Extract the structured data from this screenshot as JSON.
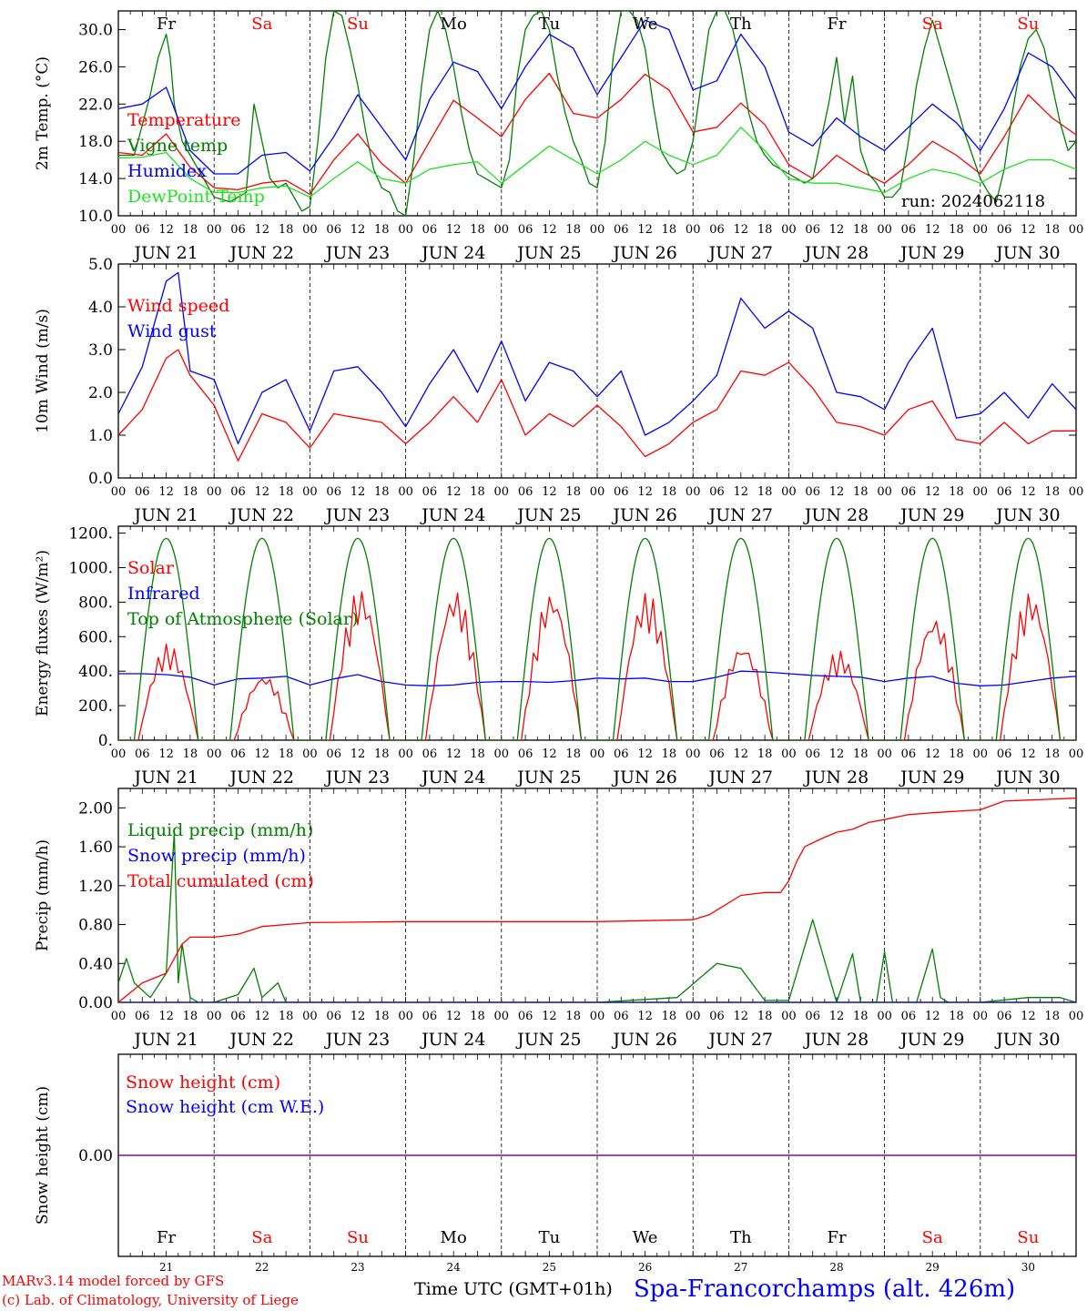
{
  "colors": {
    "red": "#ff0000",
    "green": "#008000",
    "blue": "#0000ff",
    "light_green": "#22e022",
    "purple": "#800080",
    "black": "#000000"
  },
  "days": [
    "Fr",
    "Sa",
    "Su",
    "Mo",
    "Tu",
    "We",
    "Th",
    "Fr",
    "Sa",
    "Su"
  ],
  "weekend_days": [
    "Sa",
    "Su"
  ],
  "date_labels": [
    "JUN 21",
    "JUN 22",
    "JUN 23",
    "JUN 24",
    "JUN 25",
    "JUN 26",
    "JUN 27",
    "JUN 28",
    "JUN 29",
    "JUN 30"
  ],
  "day_numbers": [
    "21",
    "22",
    "23",
    "24",
    "25",
    "26",
    "27",
    "28",
    "29",
    "30"
  ],
  "hour_labels": [
    "00",
    "06",
    "12",
    "18"
  ],
  "run_label": "run: 2024062118",
  "footer": {
    "model": "MARv3.14 model forced by GFS",
    "lab": "(c) Lab. of Climatology, University of Liege",
    "xlabel": "Time UTC (GMT+01h)",
    "location": "Spa-Francorchamps (alt. 426m)"
  },
  "chart_data": [
    {
      "type": "line",
      "ylabel": "2m Temp. (°C)",
      "ylim": [
        10,
        32
      ],
      "yticks": [
        "10.0",
        "14.0",
        "18.0",
        "22.0",
        "26.0",
        "30.0"
      ],
      "xlabel": "",
      "x_unit": "hours since 2024-06-21 00 UTC",
      "series": [
        {
          "name": "Temperature",
          "color": "#ff0000",
          "x": [
            0,
            6,
            12,
            18,
            24,
            30,
            36,
            42,
            48,
            54,
            60,
            66,
            72,
            78,
            84,
            90,
            96,
            102,
            108,
            114,
            120,
            126,
            132,
            138,
            144,
            150,
            156,
            162,
            168,
            174,
            180,
            186,
            192,
            198,
            204,
            210,
            216,
            222,
            228,
            234,
            240
          ],
          "y": [
            16.8,
            16.5,
            18.8,
            15.2,
            13.0,
            12.8,
            13.5,
            13.8,
            12.3,
            16.0,
            18.8,
            15.6,
            13.5,
            18.0,
            22.4,
            20.5,
            18.5,
            22.5,
            25.3,
            21.0,
            20.5,
            22.5,
            25.2,
            23.5,
            19.0,
            19.5,
            22.1,
            19.8,
            15.5,
            14.0,
            16.5,
            14.8,
            13.5,
            15.5,
            18.0,
            16.5,
            14.5,
            18.5,
            23.0,
            20.5,
            18.7
          ]
        },
        {
          "name": "Vigne temp",
          "color": "#008000",
          "x": [
            0,
            4,
            8,
            10,
            12,
            13,
            14,
            16,
            18,
            20,
            24,
            28,
            32,
            34,
            36,
            38,
            40,
            42,
            44,
            46,
            48,
            50,
            52,
            54,
            56,
            58,
            60,
            62,
            64,
            66,
            68,
            70,
            72,
            74,
            76,
            78,
            80,
            82,
            84,
            86,
            88,
            90,
            92,
            94,
            96,
            98,
            100,
            102,
            104,
            106,
            108,
            110,
            112,
            114,
            116,
            118,
            120,
            122,
            124,
            126,
            128,
            130,
            132,
            134,
            136,
            138,
            140,
            142,
            144,
            146,
            148,
            150,
            152,
            154,
            156,
            158,
            160,
            162,
            164,
            166,
            168,
            170,
            172,
            174,
            176,
            178,
            180,
            182,
            184,
            186,
            188,
            190,
            192,
            194,
            196,
            198,
            200,
            202,
            204,
            206,
            208,
            210,
            212,
            214,
            216,
            218,
            220,
            222,
            224,
            226,
            228,
            230,
            232,
            234,
            236,
            238,
            240
          ],
          "y": [
            16.5,
            16.5,
            23.0,
            27.0,
            29.5,
            27.0,
            22.0,
            18.0,
            16.5,
            15.0,
            12.0,
            11.5,
            12.5,
            22.0,
            18.0,
            14.0,
            13.0,
            13.5,
            12.0,
            10.5,
            11.0,
            18.0,
            27.0,
            32.0,
            31.5,
            28.0,
            24.0,
            19.0,
            15.0,
            13.0,
            12.5,
            10.5,
            10.0,
            16.0,
            24.0,
            30.0,
            33.0,
            30.0,
            26.0,
            21.0,
            17.0,
            14.5,
            14.0,
            13.5,
            13.0,
            16.0,
            25.0,
            30.0,
            31.5,
            32.0,
            30.0,
            25.0,
            21.0,
            18.0,
            16.0,
            13.5,
            13.0,
            18.0,
            27.0,
            32.0,
            33.0,
            31.0,
            28.0,
            22.0,
            17.0,
            15.5,
            14.5,
            15.0,
            18.0,
            24.0,
            30.0,
            33.0,
            32.0,
            30.0,
            26.0,
            21.0,
            18.0,
            16.5,
            15.5,
            15.0,
            14.5,
            14.0,
            13.5,
            14.0,
            18.0,
            22.0,
            27.0,
            20.0,
            25.0,
            17.0,
            14.5,
            13.5,
            12.0,
            12.0,
            13.0,
            18.0,
            24.0,
            28.0,
            31.0,
            28.0,
            25.0,
            22.0,
            19.0,
            16.5,
            14.0,
            12.5,
            11.5,
            15.0,
            21.0,
            26.0,
            29.0,
            30.0,
            28.0,
            24.0,
            20.0,
            17.0,
            18.0
          ]
        },
        {
          "name": "Humidex",
          "color": "#0000ff",
          "x": [
            0,
            6,
            12,
            18,
            24,
            30,
            36,
            42,
            48,
            54,
            60,
            66,
            72,
            78,
            84,
            90,
            96,
            102,
            108,
            114,
            120,
            126,
            132,
            138,
            144,
            150,
            156,
            162,
            168,
            174,
            180,
            186,
            192,
            198,
            204,
            210,
            216,
            222,
            228,
            234,
            240
          ],
          "y": [
            21.5,
            22.0,
            23.8,
            17.0,
            14.5,
            14.5,
            16.5,
            16.8,
            14.8,
            18.5,
            23.0,
            19.5,
            16.0,
            22.5,
            26.5,
            25.5,
            21.5,
            26.0,
            29.5,
            28.0,
            23.0,
            27.0,
            31.0,
            30.0,
            23.5,
            24.5,
            29.5,
            26.0,
            19.0,
            17.5,
            20.5,
            18.5,
            17.0,
            19.5,
            22.0,
            20.0,
            17.0,
            21.5,
            27.5,
            26.0,
            22.5
          ]
        },
        {
          "name": "DewPoint Temp",
          "color": "#22e022",
          "x": [
            0,
            6,
            12,
            18,
            24,
            30,
            36,
            42,
            48,
            54,
            60,
            66,
            72,
            78,
            84,
            90,
            96,
            102,
            108,
            114,
            120,
            126,
            132,
            138,
            144,
            150,
            156,
            162,
            168,
            174,
            180,
            186,
            192,
            198,
            204,
            210,
            216,
            222,
            228,
            234,
            240
          ],
          "y": [
            16.2,
            16.3,
            16.8,
            14.0,
            12.5,
            12.5,
            13.0,
            13.2,
            12.0,
            14.0,
            15.8,
            14.0,
            13.5,
            15.0,
            15.5,
            15.8,
            13.5,
            15.5,
            17.5,
            16.0,
            14.5,
            16.0,
            18.0,
            16.5,
            15.5,
            16.5,
            19.5,
            17.0,
            14.0,
            13.5,
            13.5,
            13.0,
            12.5,
            14.0,
            15.0,
            14.5,
            13.5,
            15.0,
            16.0,
            16.0,
            15.0
          ]
        }
      ]
    },
    {
      "type": "line",
      "ylabel": "10m Wind (m/s)",
      "ylim": [
        0,
        5
      ],
      "yticks": [
        "0.0",
        "1.0",
        "2.0",
        "3.0",
        "4.0",
        "5.0"
      ],
      "x_unit": "hours since 2024-06-21 00 UTC",
      "series": [
        {
          "name": "Wind speed",
          "color": "#ff0000",
          "x": [
            0,
            6,
            12,
            15,
            18,
            24,
            30,
            36,
            42,
            48,
            54,
            60,
            66,
            72,
            78,
            84,
            90,
            96,
            102,
            108,
            114,
            120,
            126,
            132,
            138,
            144,
            150,
            156,
            162,
            168,
            174,
            180,
            186,
            192,
            198,
            204,
            210,
            216,
            222,
            228,
            234,
            240
          ],
          "y": [
            1.0,
            1.6,
            2.8,
            3.0,
            2.4,
            1.7,
            0.4,
            1.5,
            1.3,
            0.7,
            1.5,
            1.4,
            1.3,
            0.8,
            1.3,
            1.9,
            1.3,
            2.3,
            1.0,
            1.5,
            1.2,
            1.7,
            1.2,
            0.5,
            0.8,
            1.3,
            1.6,
            2.5,
            2.4,
            2.7,
            2.1,
            1.3,
            1.2,
            1.0,
            1.6,
            1.8,
            0.9,
            0.8,
            1.3,
            0.8,
            1.1,
            1.1
          ]
        },
        {
          "name": "Wind gust",
          "color": "#0000ff",
          "x": [
            0,
            6,
            12,
            15,
            18,
            24,
            30,
            36,
            42,
            48,
            54,
            60,
            66,
            72,
            78,
            84,
            90,
            96,
            102,
            108,
            114,
            120,
            126,
            132,
            138,
            144,
            150,
            156,
            162,
            168,
            174,
            180,
            186,
            192,
            198,
            204,
            210,
            216,
            222,
            228,
            234,
            240
          ],
          "y": [
            1.5,
            2.6,
            4.6,
            4.8,
            2.5,
            2.3,
            0.8,
            2.0,
            2.3,
            1.1,
            2.5,
            2.6,
            2.0,
            1.2,
            2.2,
            3.0,
            2.0,
            3.2,
            1.8,
            2.7,
            2.5,
            1.9,
            2.5,
            1.0,
            1.3,
            1.8,
            2.4,
            4.2,
            3.5,
            3.9,
            3.5,
            2.0,
            1.9,
            1.6,
            2.7,
            3.5,
            1.4,
            1.5,
            2.0,
            1.4,
            2.2,
            1.6
          ]
        }
      ]
    },
    {
      "type": "line",
      "ylabel": "Energy fluxes (W/m²)",
      "ylim": [
        0,
        1200
      ],
      "yticks": [
        "0.",
        "200.",
        "400.",
        "600.",
        "800.",
        "1000.",
        "1200."
      ],
      "x_unit": "hours since 2024-06-21 00 UTC",
      "series": [
        {
          "name": "Solar",
          "color": "#ff0000",
          "peaks": [
            560,
            380,
            880,
            870,
            860,
            860,
            560,
            520,
            720,
            860
          ],
          "peak_hour": 13
        },
        {
          "name": "Infrared",
          "color": "#0000ff",
          "x": [
            0,
            6,
            12,
            18,
            24,
            30,
            36,
            42,
            48,
            54,
            60,
            66,
            72,
            78,
            84,
            90,
            96,
            102,
            108,
            114,
            120,
            126,
            132,
            138,
            144,
            150,
            156,
            162,
            168,
            174,
            180,
            186,
            192,
            198,
            204,
            210,
            216,
            222,
            228,
            234,
            240
          ],
          "y": [
            385,
            385,
            380,
            365,
            320,
            355,
            360,
            370,
            320,
            355,
            380,
            340,
            320,
            315,
            320,
            335,
            340,
            340,
            335,
            345,
            360,
            355,
            360,
            340,
            340,
            365,
            400,
            395,
            385,
            375,
            370,
            365,
            340,
            360,
            370,
            330,
            315,
            320,
            340,
            360,
            370
          ]
        },
        {
          "name": "Top of Atmosphere (Solar)",
          "color": "#008000",
          "peak": 1170,
          "sunrise_hour": 4,
          "sunset_hour": 20
        }
      ]
    },
    {
      "type": "line",
      "ylabel": "Precip (mm/h)",
      "ylim": [
        0,
        2.2
      ],
      "yticks": [
        "0.00",
        "0.40",
        "0.80",
        "1.20",
        "1.60",
        "2.00"
      ],
      "x_unit": "hours since 2024-06-21 00 UTC",
      "series": [
        {
          "name": "Liquid precip (mm/h)",
          "color": "#008000",
          "x": [
            0,
            2,
            4,
            8,
            12,
            14,
            15,
            16,
            18,
            20,
            24,
            30,
            34,
            36,
            40,
            42,
            44,
            48,
            72,
            100,
            120,
            140,
            150,
            156,
            162,
            168,
            174,
            180,
            184,
            186,
            190,
            192,
            194,
            196,
            200,
            204,
            206,
            208,
            212,
            216,
            228,
            236,
            240
          ],
          "y": [
            0.2,
            0.45,
            0.2,
            0.05,
            0.3,
            1.75,
            0.2,
            0.6,
            0.05,
            0.0,
            0.0,
            0.08,
            0.35,
            0.05,
            0.2,
            0.0,
            0.0,
            0.0,
            0.0,
            0.0,
            0.0,
            0.05,
            0.4,
            0.35,
            0.02,
            0.02,
            0.85,
            0.0,
            0.5,
            0.0,
            0.0,
            0.52,
            0.0,
            0.0,
            0.0,
            0.55,
            0.05,
            0.0,
            0.0,
            0.0,
            0.05,
            0.05,
            0.0
          ]
        },
        {
          "name": "Snow precip (mm/h)",
          "color": "#0000ff",
          "x": [
            0,
            240
          ],
          "y": [
            0,
            0
          ]
        },
        {
          "name": "Total cumulated (cm)",
          "color": "#ff0000",
          "x": [
            0,
            6,
            12,
            14,
            16,
            18,
            24,
            30,
            36,
            48,
            72,
            96,
            120,
            144,
            148,
            152,
            156,
            162,
            166,
            168,
            170,
            172,
            176,
            180,
            184,
            188,
            192,
            198,
            204,
            216,
            222,
            228,
            240
          ],
          "y": [
            0.0,
            0.2,
            0.3,
            0.45,
            0.6,
            0.67,
            0.67,
            0.7,
            0.78,
            0.82,
            0.83,
            0.83,
            0.83,
            0.85,
            0.9,
            1.0,
            1.1,
            1.13,
            1.13,
            1.25,
            1.45,
            1.6,
            1.68,
            1.75,
            1.78,
            1.85,
            1.88,
            1.93,
            1.95,
            1.98,
            2.07,
            2.08,
            2.1
          ]
        }
      ]
    },
    {
      "type": "line",
      "ylabel": "Snow height (cm)",
      "yticks": [
        "0.00"
      ],
      "x_unit": "hours since 2024-06-21 00 UTC",
      "series": [
        {
          "name": "Snow height (cm)",
          "color": "#ff0000",
          "x": [
            0,
            240
          ],
          "y": [
            0,
            0
          ]
        },
        {
          "name": "Snow height (cm W.E.)",
          "color": "#0000ff",
          "x": [
            0,
            240
          ],
          "y": [
            0,
            0
          ]
        }
      ]
    }
  ]
}
